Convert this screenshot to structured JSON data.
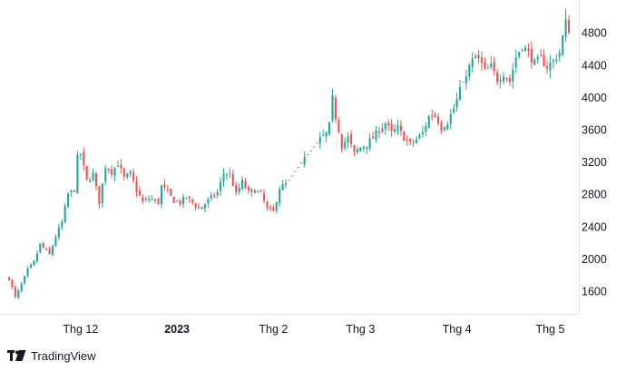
{
  "colors": {
    "up": "#26a69a",
    "down": "#ef5350",
    "axis_line": "#e0e3eb",
    "text": "#131722"
  },
  "footer": {
    "brand": "TradingView",
    "logo_icon": "tradingview-logo-icon"
  },
  "chart_data": {
    "type": "candlestick",
    "title": "",
    "xlabel": "",
    "ylabel": "",
    "ylim": [
      1330,
      5150
    ],
    "grid": false,
    "y_axis_position": "right",
    "y_ticks": [
      "1600",
      "2000",
      "2400",
      "2800",
      "3200",
      "3600",
      "4000",
      "4400",
      "4800"
    ],
    "x_ticks": [
      {
        "label": "Thg 12",
        "bold": false,
        "day": 23
      },
      {
        "label": "2023",
        "bold": true,
        "day": 54
      },
      {
        "label": "Thg 2",
        "bold": false,
        "day": 85
      },
      {
        "label": "Thg 3",
        "bold": false,
        "day": 113
      },
      {
        "label": "Thg 4",
        "bold": false,
        "day": 144
      },
      {
        "label": "Thg 5",
        "bold": false,
        "day": 174
      }
    ],
    "anchors": [
      [
        0,
        1760
      ],
      [
        2,
        1520
      ],
      [
        4,
        1680
      ],
      [
        6,
        1860
      ],
      [
        8,
        1960
      ],
      [
        10,
        2180
      ],
      [
        13,
        2050
      ],
      [
        15,
        2280
      ],
      [
        17,
        2450
      ],
      [
        19,
        2800
      ],
      [
        21,
        2860
      ],
      [
        22,
        3250
      ],
      [
        23,
        3300
      ],
      [
        25,
        2960
      ],
      [
        27,
        3050
      ],
      [
        29,
        2700
      ],
      [
        31,
        3150
      ],
      [
        33,
        3080
      ],
      [
        35,
        3180
      ],
      [
        37,
        3000
      ],
      [
        39,
        3050
      ],
      [
        41,
        2850
      ],
      [
        43,
        2700
      ],
      [
        45,
        2750
      ],
      [
        48,
        2700
      ],
      [
        49,
        2900
      ],
      [
        51,
        2820
      ],
      [
        53,
        2720
      ],
      [
        55,
        2700
      ],
      [
        57,
        2760
      ],
      [
        59,
        2700
      ],
      [
        61,
        2620
      ],
      [
        63,
        2680
      ],
      [
        65,
        2760
      ],
      [
        67,
        2820
      ],
      [
        69,
        3060
      ],
      [
        71,
        3050
      ],
      [
        73,
        2800
      ],
      [
        75,
        2950
      ],
      [
        77,
        2820
      ],
      [
        79,
        2850
      ],
      [
        81,
        2800
      ],
      [
        83,
        2620
      ],
      [
        85,
        2580
      ],
      [
        87,
        2880
      ],
      [
        89,
        2920
      ],
      [
        95,
        3240
      ],
      [
        100,
        3480
      ],
      [
        102,
        3550
      ],
      [
        103,
        3650
      ],
      [
        104,
        3980
      ],
      [
        105,
        3760
      ],
      [
        106,
        3600
      ],
      [
        107,
        3400
      ],
      [
        109,
        3500
      ],
      [
        111,
        3300
      ],
      [
        113,
        3380
      ],
      [
        115,
        3420
      ],
      [
        117,
        3500
      ],
      [
        119,
        3600
      ],
      [
        121,
        3680
      ],
      [
        123,
        3560
      ],
      [
        125,
        3620
      ],
      [
        127,
        3500
      ],
      [
        129,
        3420
      ],
      [
        131,
        3480
      ],
      [
        133,
        3560
      ],
      [
        135,
        3760
      ],
      [
        137,
        3800
      ],
      [
        139,
        3620
      ],
      [
        141,
        3700
      ],
      [
        143,
        3860
      ],
      [
        145,
        4080
      ],
      [
        147,
        4300
      ],
      [
        149,
        4450
      ],
      [
        151,
        4500
      ],
      [
        153,
        4320
      ],
      [
        155,
        4380
      ],
      [
        157,
        4220
      ],
      [
        159,
        4300
      ],
      [
        161,
        4200
      ],
      [
        163,
        4500
      ],
      [
        165,
        4650
      ],
      [
        167,
        4550
      ],
      [
        169,
        4420
      ],
      [
        171,
        4480
      ],
      [
        173,
        4380
      ],
      [
        175,
        4450
      ],
      [
        177,
        4560
      ],
      [
        179,
        4920
      ],
      [
        180,
        4880
      ]
    ],
    "gaps": [
      [
        90,
        94
      ],
      [
        96,
        99
      ],
      [
        146,
        146
      ]
    ],
    "candle_count": 181,
    "note_last": "last two sessions extend to ~5100 high"
  }
}
